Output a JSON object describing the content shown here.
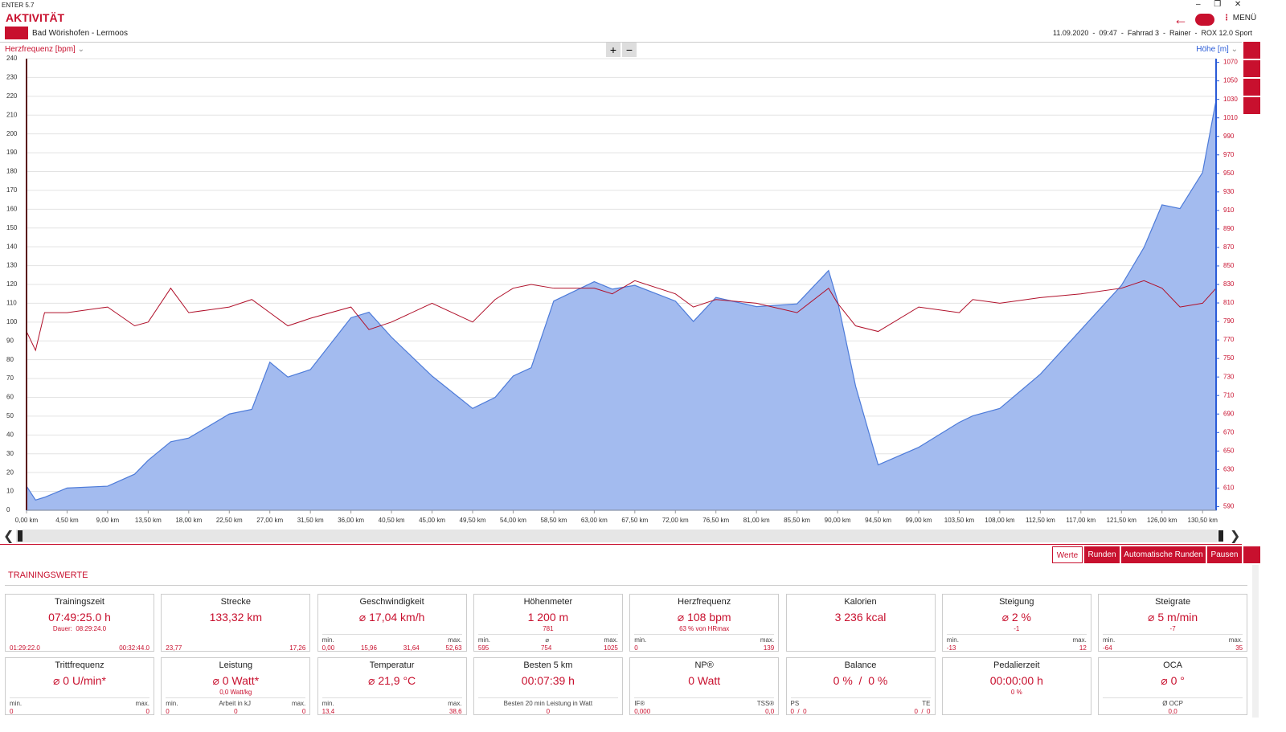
{
  "header": {
    "app": "ENTER 5.7",
    "title": "AKTIVITÄT",
    "route": "Bad Wörishofen - Lermoos",
    "info": "11.09.2020  -  09:47  -  Fahrrad 3  -  Rainer  -  ROX 12.0 Sport",
    "menu": "MENÜ"
  },
  "chart_data": {
    "type": "line",
    "ylabel": "Herzfrequenz [bpm]",
    "y2label": "Höhe [m]",
    "x": [
      0,
      1,
      2,
      4.5,
      9,
      12,
      13.5,
      16,
      18,
      22.5,
      25,
      27,
      29,
      31.5,
      36,
      38,
      40.5,
      45,
      49.5,
      52,
      54,
      56,
      58.5,
      63,
      65,
      67.5,
      72,
      74,
      76.5,
      81,
      85.5,
      89,
      90,
      92,
      94.5,
      99,
      103.5,
      105,
      108,
      112.5,
      117,
      121.5,
      124,
      126,
      128,
      130.5,
      132
    ],
    "xlim": [
      0,
      132
    ],
    "xticks": [
      {
        "value": 0,
        "label": "0,00 km"
      },
      {
        "value": 4.5,
        "label": "4,50 km"
      },
      {
        "value": 9,
        "label": "9,00 km"
      },
      {
        "value": 13.5,
        "label": "13,50 km"
      },
      {
        "value": 18,
        "label": "18,00 km"
      },
      {
        "value": 22.5,
        "label": "22,50 km"
      },
      {
        "value": 27,
        "label": "27,00 km"
      },
      {
        "value": 31.5,
        "label": "31,50 km"
      },
      {
        "value": 36,
        "label": "36,00 km"
      },
      {
        "value": 40.5,
        "label": "40,50 km"
      },
      {
        "value": 45,
        "label": "45,00 km"
      },
      {
        "value": 49.5,
        "label": "49,50 km"
      },
      {
        "value": 54,
        "label": "54,00 km"
      },
      {
        "value": 58.5,
        "label": "58,50 km"
      },
      {
        "value": 63,
        "label": "63,00 km"
      },
      {
        "value": 67.5,
        "label": "67,50 km"
      },
      {
        "value": 72,
        "label": "72,00 km"
      },
      {
        "value": 76.5,
        "label": "76,50 km"
      },
      {
        "value": 81,
        "label": "81,00 km"
      },
      {
        "value": 85.5,
        "label": "85,50 km"
      },
      {
        "value": 90,
        "label": "90,00 km"
      },
      {
        "value": 94.5,
        "label": "94,50 km"
      },
      {
        "value": 99,
        "label": "99,00 km"
      },
      {
        "value": 103.5,
        "label": "103,50 km"
      },
      {
        "value": 108,
        "label": "108,00 km"
      },
      {
        "value": 112.5,
        "label": "112,50 km"
      },
      {
        "value": 117,
        "label": "117,00 km"
      },
      {
        "value": 121.5,
        "label": "121,50 km"
      },
      {
        "value": 126,
        "label": "126,00 km"
      },
      {
        "value": 130.5,
        "label": "130,50 km"
      }
    ],
    "ylim": [
      0,
      240
    ],
    "yticks": [
      0,
      10,
      20,
      30,
      40,
      50,
      60,
      70,
      80,
      90,
      100,
      110,
      120,
      130,
      140,
      150,
      160,
      170,
      180,
      190,
      200,
      210,
      220,
      230,
      240
    ],
    "y2lim": [
      586,
      1074
    ],
    "y2ticks": [
      590,
      610,
      630,
      650,
      670,
      690,
      710,
      730,
      750,
      770,
      790,
      810,
      830,
      850,
      870,
      890,
      910,
      930,
      950,
      970,
      990,
      1010,
      1030,
      1050,
      1070
    ],
    "grid": true,
    "series": [
      {
        "type": "area",
        "axis": "y2",
        "color": "#a3bbef",
        "line_color": "#4d7bd9",
        "values": [
          612,
          597,
          600,
          610,
          612,
          625,
          640,
          660,
          664,
          690,
          695,
          746,
          730,
          738,
          794,
          800,
          773,
          731,
          696,
          708,
          731,
          740,
          812,
          833,
          825,
          829,
          812,
          790,
          816,
          806,
          809,
          845,
          812,
          720,
          635,
          654,
          681,
          688,
          696,
          733,
          781,
          829,
          870,
          916,
          912,
          951,
          1029
        ]
      },
      {
        "type": "line",
        "axis": "y",
        "color": "#b0102a",
        "values": [
          95,
          85,
          105,
          105,
          108,
          98,
          100,
          118,
          105,
          108,
          112,
          105,
          98,
          102,
          108,
          96,
          100,
          110,
          100,
          112,
          118,
          120,
          118,
          118,
          115,
          122,
          115,
          108,
          112,
          110,
          105,
          118,
          110,
          98,
          95,
          108,
          105,
          112,
          110,
          113,
          115,
          118,
          122,
          118,
          108,
          110,
          118
        ]
      }
    ]
  },
  "tabs": [
    "Werte",
    "Runden",
    "Automatische Runden",
    "Pausen"
  ],
  "section": "TRAININGSWERTE",
  "tiles": [
    {
      "title": "Trainingszeit",
      "value": "07:49:25.0 h",
      "note": "Dauer:  08:29:24.0",
      "numbers": [
        "01:29:22.0",
        "00:32:44.0"
      ]
    },
    {
      "title": "Strecke",
      "value": "133,32 km",
      "numbers": [
        "23,77",
        "17,26"
      ]
    },
    {
      "title": "Geschwindigkeit",
      "value": "⌀ 17,04 km/h",
      "labels": [
        "min.",
        "max."
      ],
      "numbers": [
        "0,00",
        "15,96",
        "31,64",
        "52,63"
      ]
    },
    {
      "title": "Höhenmeter",
      "value": "1 200 m",
      "note": "781",
      "labels": [
        "min.",
        "⌀",
        "max."
      ],
      "numbers": [
        "595",
        "754",
        "1025"
      ]
    },
    {
      "title": "Herzfrequenz",
      "value": "⌀ 108 bpm",
      "note": "63 % von HRmax",
      "labels": [
        "min.",
        "max."
      ],
      "numbers": [
        "0",
        "139"
      ]
    },
    {
      "title": "Kalorien",
      "value": "3 236 kcal"
    },
    {
      "title": "Steigung",
      "value": "⌀ 2 %",
      "note": "-1",
      "labels": [
        "min.",
        "max."
      ],
      "numbers": [
        "-13",
        "12"
      ]
    },
    {
      "title": "Steigrate",
      "value": "⌀ 5 m/min",
      "note": "-7",
      "labels": [
        "min.",
        "max."
      ],
      "numbers": [
        "-64",
        "35"
      ]
    },
    {
      "title": "Trittfrequenz",
      "value": "⌀ 0 U/min*",
      "labels": [
        "min.",
        "max."
      ],
      "numbers": [
        "0",
        "0"
      ]
    },
    {
      "title": "Leistung",
      "value": "⌀ 0 Watt*",
      "note": "0,0 Watt/kg",
      "labels": [
        "min.",
        "Arbeit in kJ",
        "max."
      ],
      "numbers": [
        "0",
        "0",
        "0"
      ]
    },
    {
      "title": "Temperatur",
      "value": "⌀ 21,9 °C",
      "labels": [
        "min.",
        "max."
      ],
      "numbers": [
        "13,4",
        "38,6"
      ]
    },
    {
      "title": "Besten 5 km",
      "value": "00:07:39 h",
      "labels": [
        "Besten 20 min Leistung in Watt"
      ],
      "numbers": [
        "0"
      ]
    },
    {
      "title": "NP®",
      "value": "0 Watt",
      "labels": [
        "IF®",
        "TSS®"
      ],
      "numbers": [
        "0,000",
        "0,0"
      ]
    },
    {
      "title": "Balance",
      "value": "0 %  /  0 %",
      "labels": [
        "PS",
        "TE"
      ],
      "numbers": [
        "0  /  0",
        "0  /  0"
      ]
    },
    {
      "title": "Pedalierzeit",
      "value": "00:00:00 h",
      "note": "0 %"
    },
    {
      "title": "OCA",
      "value": "⌀ 0 °",
      "labels": [
        "Ø OCP"
      ],
      "numbers": [
        "0,0"
      ]
    }
  ]
}
